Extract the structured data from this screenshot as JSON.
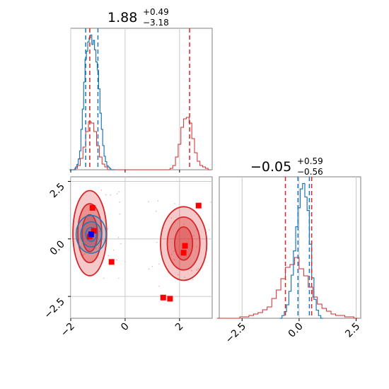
{
  "chart_data": {
    "type": "corner",
    "colors": {
      "red": "#d62728",
      "blue": "#1f77b4",
      "grid": "#c8c8c8",
      "frame": "#7f7f7f"
    },
    "panels": {
      "hist_x": {
        "type": "histogram",
        "title": {
          "main": "1.88",
          "sup": "+0.49",
          "sub": "−3.18"
        },
        "xlim": [
          -2,
          3.2
        ],
        "red_quantiles": [
          -1.3,
          2.37
        ],
        "blue_quantiles": [
          -1.45,
          -1.0
        ],
        "red_hist": {
          "x": [
            -2.0,
            -1.9,
            -1.8,
            -1.7,
            -1.6,
            -1.5,
            -1.4,
            -1.3,
            -1.2,
            -1.1,
            -1.0,
            -0.9,
            -0.8,
            -0.7,
            -0.6,
            -0.5,
            -0.4,
            -0.3,
            -0.2,
            -0.1,
            0.0,
            0.1,
            0.2,
            0.3,
            0.4,
            0.5,
            0.6,
            0.7,
            0.8,
            0.9,
            1.0,
            1.1,
            1.2,
            1.3,
            1.4,
            1.5,
            1.6,
            1.7,
            1.8,
            1.9,
            2.0,
            2.1,
            2.2,
            2.3,
            2.4,
            2.5,
            2.6,
            2.7,
            2.8,
            2.9,
            3.0,
            3.1
          ],
          "y": [
            0,
            0,
            0.01,
            0.03,
            0.08,
            0.16,
            0.27,
            0.34,
            0.33,
            0.27,
            0.17,
            0.09,
            0.04,
            0.02,
            0,
            0,
            0,
            0,
            0,
            0,
            0,
            0,
            0,
            0,
            0,
            0,
            0,
            0,
            0,
            0,
            0,
            0,
            0,
            0,
            0,
            0,
            0,
            0.01,
            0.03,
            0.09,
            0.18,
            0.3,
            0.36,
            0.37,
            0.33,
            0.22,
            0.12,
            0.06,
            0.03,
            0.02,
            0.01,
            0
          ]
        },
        "blue_hist": {
          "x": [
            -2.0,
            -1.95,
            -1.9,
            -1.85,
            -1.8,
            -1.75,
            -1.7,
            -1.65,
            -1.6,
            -1.55,
            -1.5,
            -1.45,
            -1.4,
            -1.35,
            -1.3,
            -1.25,
            -1.2,
            -1.15,
            -1.1,
            -1.05,
            -1.0,
            -0.95,
            -0.9,
            -0.85,
            -0.8,
            -0.75,
            -0.7,
            -0.65,
            -0.6,
            -0.55,
            -0.5,
            -0.45,
            -0.4
          ],
          "y": [
            0,
            0,
            0,
            0,
            0.02,
            0.04,
            0.08,
            0.14,
            0.3,
            0.45,
            0.65,
            0.82,
            0.88,
            0.95,
            0.98,
            1.0,
            0.93,
            0.96,
            0.89,
            0.8,
            0.74,
            0.6,
            0.42,
            0.3,
            0.18,
            0.1,
            0.06,
            0.03,
            0.02,
            0.01,
            0,
            0,
            0
          ]
        }
      },
      "scatter": {
        "xlim": [
          -2,
          3.2
        ],
        "ylim": [
          -3.45,
          2.7
        ],
        "xticks": [
          -2,
          0,
          2
        ],
        "yticks": [
          2.5,
          0.0,
          -2.5
        ],
        "ytick_labels": [
          "2.5",
          "0.0",
          "−2.5"
        ],
        "xtick_labels": [
          "−2",
          "0",
          "2"
        ],
        "red_contours": [
          {
            "cx": -1.3,
            "cy": 0.25,
            "levels": [
              {
                "rx": 0.62,
                "ry": 1.85,
                "fill": 0.35
              },
              {
                "rx": 0.44,
                "ry": 1.28,
                "fill": 0.6
              },
              {
                "rx": 0.28,
                "ry": 0.8,
                "fill": 0.85
              }
            ]
          },
          {
            "cx": 2.15,
            "cy": -0.2,
            "levels": [
              {
                "rx": 0.85,
                "ry": 1.6,
                "fill": 0.35
              },
              {
                "rx": 0.6,
                "ry": 1.15,
                "fill": 0.6
              },
              {
                "rx": 0.33,
                "ry": 0.72,
                "fill": 0.85
              }
            ]
          }
        ],
        "blue_contours": {
          "cx": -1.25,
          "cy": 0.2,
          "levels": [
            {
              "rx": 0.55,
              "ry": 0.82
            },
            {
              "rx": 0.38,
              "ry": 0.55
            },
            {
              "rx": 0.2,
              "ry": 0.3
            }
          ]
        },
        "red_points": [
          {
            "x": -1.2,
            "y": 1.35
          },
          {
            "x": -1.15,
            "y": 0.35
          },
          {
            "x": -1.3,
            "y": 0.1
          },
          {
            "x": -0.5,
            "y": -1.0
          },
          {
            "x": 1.4,
            "y": -2.55
          },
          {
            "x": 1.65,
            "y": -2.6
          },
          {
            "x": 2.7,
            "y": 1.45
          },
          {
            "x": 2.2,
            "y": -0.3
          },
          {
            "x": 2.15,
            "y": -0.6
          }
        ],
        "blue_point": {
          "x": -1.25,
          "y": 0.2
        }
      },
      "hist_y": {
        "type": "histogram",
        "title": {
          "main": "−0.05",
          "sup": "+0.59",
          "sub": "−0.56"
        },
        "xlim": [
          -3.5,
          2.7
        ],
        "xticks": [
          -2.5,
          0.0,
          2.5
        ],
        "xtick_labels": [
          "−2.5",
          "0.0",
          "2.5"
        ],
        "red_quantiles": [
          -0.6,
          0.55
        ],
        "blue_quantiles": [
          -0.05,
          0.45
        ],
        "red_hist": {
          "x": [
            -3.5,
            -3.3,
            -3.1,
            -2.9,
            -2.7,
            -2.5,
            -2.3,
            -2.1,
            -1.9,
            -1.7,
            -1.5,
            -1.3,
            -1.1,
            -0.9,
            -0.7,
            -0.5,
            -0.3,
            -0.1,
            0.1,
            0.3,
            0.5,
            0.7,
            0.9,
            1.1,
            1.3,
            1.5,
            1.7,
            1.9,
            2.1,
            2.3,
            2.5
          ],
          "y": [
            0,
            0,
            0,
            0,
            0,
            0.01,
            0.01,
            0.02,
            0.03,
            0.04,
            0.06,
            0.08,
            0.14,
            0.2,
            0.28,
            0.36,
            0.38,
            0.43,
            0.35,
            0.3,
            0.22,
            0.15,
            0.1,
            0.07,
            0.05,
            0.03,
            0.02,
            0.02,
            0.01,
            0.01,
            0
          ]
        },
        "blue_hist": {
          "x": [
            -0.8,
            -0.7,
            -0.6,
            -0.5,
            -0.4,
            -0.3,
            -0.2,
            -0.1,
            0.0,
            0.1,
            0.2,
            0.3,
            0.4,
            0.5,
            0.6,
            0.7,
            0.8,
            0.9,
            1.0
          ],
          "y": [
            0,
            0.02,
            0.05,
            0.1,
            0.2,
            0.32,
            0.5,
            0.68,
            0.82,
            0.96,
            1.0,
            0.9,
            0.8,
            0.55,
            0.3,
            0.14,
            0.06,
            0.02,
            0
          ]
        }
      }
    }
  }
}
